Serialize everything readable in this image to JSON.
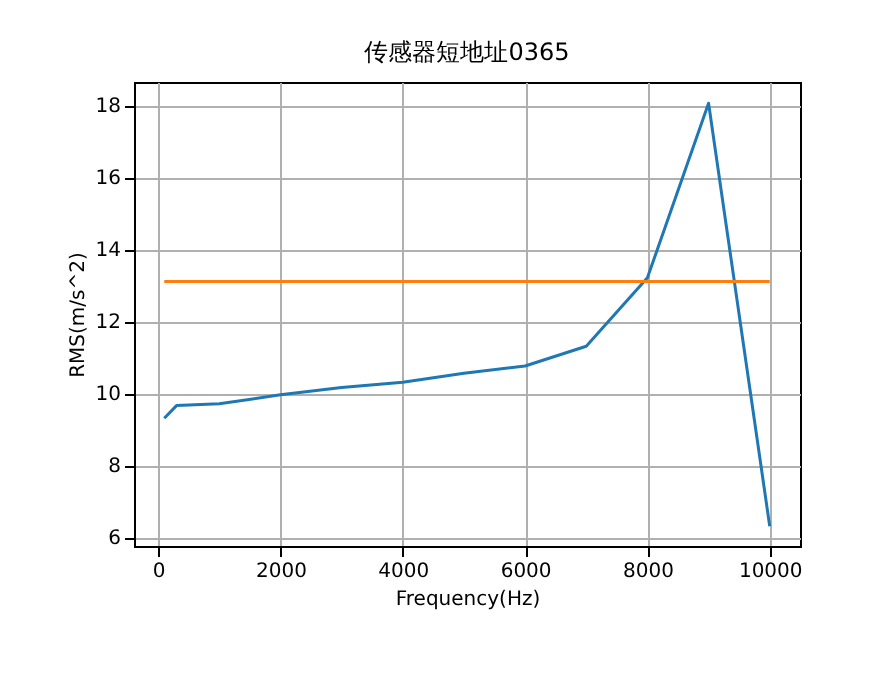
{
  "chart_data": {
    "type": "line",
    "title": "传感器短地址0365",
    "xlabel": "Frequency(Hz)",
    "ylabel": "RMS(m/s^2)",
    "xlim": [
      -395,
      10495
    ],
    "xticks": [
      0,
      2000,
      4000,
      6000,
      8000,
      10000
    ],
    "ylim": [
      5.75,
      18.64
    ],
    "yticks": [
      6,
      8,
      10,
      12,
      14,
      16,
      18
    ],
    "grid": true,
    "series": [
      {
        "color": "#1f77b4",
        "x": [
          100,
          300,
          1000,
          2000,
          3000,
          4000,
          5000,
          6000,
          7000,
          8000,
          9000,
          10000
        ],
        "values": [
          9.3,
          9.65,
          9.7,
          9.95,
          10.15,
          10.3,
          10.55,
          10.75,
          11.3,
          13.2,
          18.05,
          6.3
        ]
      },
      {
        "color": "#ff7f0e",
        "x": [
          100,
          10000
        ],
        "values": [
          13.1,
          13.1
        ]
      }
    ]
  }
}
